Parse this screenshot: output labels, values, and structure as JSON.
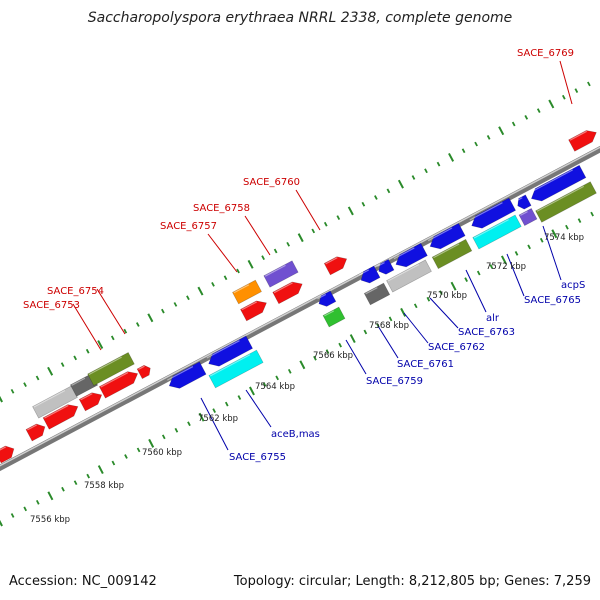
{
  "title": "Saccharopolyspora erythraea NRRL 2338, complete genome",
  "footer": {
    "accession": "Accession: NC_009142",
    "summary": "Topology: circular; Length: 8,212,805 bp; Genes: 7,259"
  },
  "colors": {
    "backbone": "#8c8c8c",
    "forward_label": "#cc0000",
    "reverse_label": "#0000aa",
    "tick": "#2a8a2a"
  },
  "tick_labels": [
    "7556 kbp",
    "7558 kbp",
    "7560 kbp",
    "7562 kbp",
    "7564 kbp",
    "7566 kbp",
    "7568 kbp",
    "7570 kbp",
    "7572 kbp",
    "7574 kbp"
  ],
  "forward_labels": [
    "SACE_6753",
    "SACE_6754",
    "SACE_6757",
    "SACE_6758",
    "SACE_6760",
    "SACE_6769"
  ],
  "reverse_labels": [
    "SACE_6755",
    "aceB,mas",
    "SACE_6759",
    "SACE_6761",
    "SACE_6762",
    "SACE_6763",
    "alr",
    "SACE_6765",
    "acpS"
  ]
}
